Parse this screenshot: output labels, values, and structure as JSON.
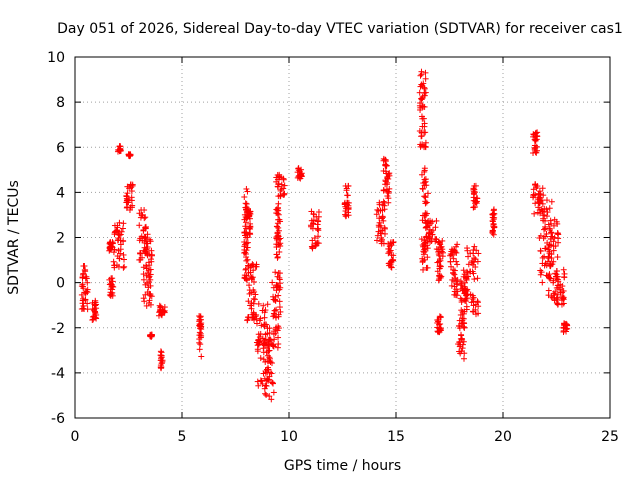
{
  "chart_data": {
    "type": "scatter",
    "title": "Day 051 of 2026, Sidereal Day-to-day VTEC variation (SDTVAR) for receiver cas1",
    "xlabel": "GPS time / hours",
    "ylabel": "SDTVAR / TECUs",
    "xlim": [
      0,
      25
    ],
    "ylim": [
      -6,
      10
    ],
    "xticks": [
      0,
      5,
      10,
      15,
      20,
      25
    ],
    "yticks": [
      -6,
      -4,
      -2,
      0,
      2,
      4,
      6,
      8,
      10
    ],
    "grid": true,
    "marker": "+",
    "color": "#ff0000",
    "clusters": [
      {
        "x": [
          0.3,
          0.6
        ],
        "y": [
          -1.2,
          0.8
        ]
      },
      {
        "x": [
          0.8,
          1.0
        ],
        "y": [
          -1.7,
          -0.8
        ]
      },
      {
        "x": [
          1.6,
          1.8
        ],
        "y": [
          -0.6,
          0.2
        ]
      },
      {
        "x": [
          1.6,
          1.8
        ],
        "y": [
          1.3,
          1.8
        ]
      },
      {
        "x": [
          1.8,
          2.3
        ],
        "y": [
          0.6,
          2.9
        ]
      },
      {
        "x": [
          2.0,
          2.2
        ],
        "y": [
          5.8,
          6.1
        ]
      },
      {
        "x": [
          2.4,
          2.7
        ],
        "y": [
          3.2,
          4.4
        ]
      },
      {
        "x": [
          2.5,
          2.6
        ],
        "y": [
          5.6,
          5.7
        ]
      },
      {
        "x": [
          3.0,
          3.4
        ],
        "y": [
          1.0,
          3.3
        ]
      },
      {
        "x": [
          3.2,
          3.6
        ],
        "y": [
          -1.1,
          2.0
        ]
      },
      {
        "x": [
          3.5,
          3.6
        ],
        "y": [
          -2.4,
          -2.3
        ]
      },
      {
        "x": [
          3.9,
          4.2
        ],
        "y": [
          -1.5,
          -1.0
        ]
      },
      {
        "x": [
          4.0,
          4.1
        ],
        "y": [
          -3.8,
          -3.0
        ]
      },
      {
        "x": [
          5.8,
          5.9
        ],
        "y": [
          -3.3,
          -1.4
        ]
      },
      {
        "x": [
          7.9,
          8.1
        ],
        "y": [
          0.0,
          4.2
        ]
      },
      {
        "x": [
          8.0,
          8.5
        ],
        "y": [
          -1.7,
          1.0
        ]
      },
      {
        "x": [
          8.1,
          8.2
        ],
        "y": [
          2.0,
          3.2
        ]
      },
      {
        "x": [
          8.5,
          9.1
        ],
        "y": [
          -4.6,
          -0.9
        ]
      },
      {
        "x": [
          8.8,
          9.3
        ],
        "y": [
          -5.2,
          -2.5
        ]
      },
      {
        "x": [
          9.2,
          9.6
        ],
        "y": [
          -3.0,
          0.5
        ]
      },
      {
        "x": [
          9.4,
          9.8
        ],
        "y": [
          3.8,
          4.8
        ]
      },
      {
        "x": [
          9.4,
          9.6
        ],
        "y": [
          1.0,
          3.5
        ]
      },
      {
        "x": [
          10.4,
          10.6
        ],
        "y": [
          4.6,
          5.1
        ]
      },
      {
        "x": [
          11.0,
          11.4
        ],
        "y": [
          1.5,
          3.2
        ]
      },
      {
        "x": [
          12.6,
          12.8
        ],
        "y": [
          2.9,
          4.3
        ]
      },
      {
        "x": [
          14.1,
          14.5
        ],
        "y": [
          1.7,
          3.6
        ]
      },
      {
        "x": [
          14.4,
          14.7
        ],
        "y": [
          3.5,
          5.6
        ]
      },
      {
        "x": [
          14.6,
          14.9
        ],
        "y": [
          0.6,
          1.8
        ]
      },
      {
        "x": [
          16.1,
          16.4
        ],
        "y": [
          6.0,
          9.4
        ]
      },
      {
        "x": [
          16.2,
          16.5
        ],
        "y": [
          0.5,
          5.3
        ]
      },
      {
        "x": [
          16.5,
          16.9
        ],
        "y": [
          1.7,
          2.8
        ]
      },
      {
        "x": [
          16.9,
          17.2
        ],
        "y": [
          0.0,
          1.9
        ]
      },
      {
        "x": [
          16.9,
          17.1
        ],
        "y": [
          -2.2,
          -1.4
        ]
      },
      {
        "x": [
          17.5,
          17.9
        ],
        "y": [
          -0.6,
          1.7
        ]
      },
      {
        "x": [
          17.9,
          18.2
        ],
        "y": [
          -3.4,
          -1.2
        ]
      },
      {
        "x": [
          18.0,
          18.3
        ],
        "y": [
          -0.9,
          0.6
        ]
      },
      {
        "x": [
          18.3,
          18.9
        ],
        "y": [
          -1.4,
          1.8
        ]
      },
      {
        "x": [
          18.6,
          18.8
        ],
        "y": [
          3.3,
          4.4
        ]
      },
      {
        "x": [
          19.5,
          19.6
        ],
        "y": [
          2.1,
          3.3
        ]
      },
      {
        "x": [
          21.4,
          21.6
        ],
        "y": [
          5.7,
          6.7
        ]
      },
      {
        "x": [
          21.4,
          21.9
        ],
        "y": [
          3.0,
          4.4
        ]
      },
      {
        "x": [
          21.7,
          22.3
        ],
        "y": [
          0.0,
          3.8
        ]
      },
      {
        "x": [
          22.1,
          22.6
        ],
        "y": [
          -0.8,
          2.9
        ]
      },
      {
        "x": [
          22.5,
          22.9
        ],
        "y": [
          -1.0,
          0.6
        ]
      },
      {
        "x": [
          22.8,
          23.0
        ],
        "y": [
          -2.2,
          -1.8
        ]
      }
    ]
  }
}
